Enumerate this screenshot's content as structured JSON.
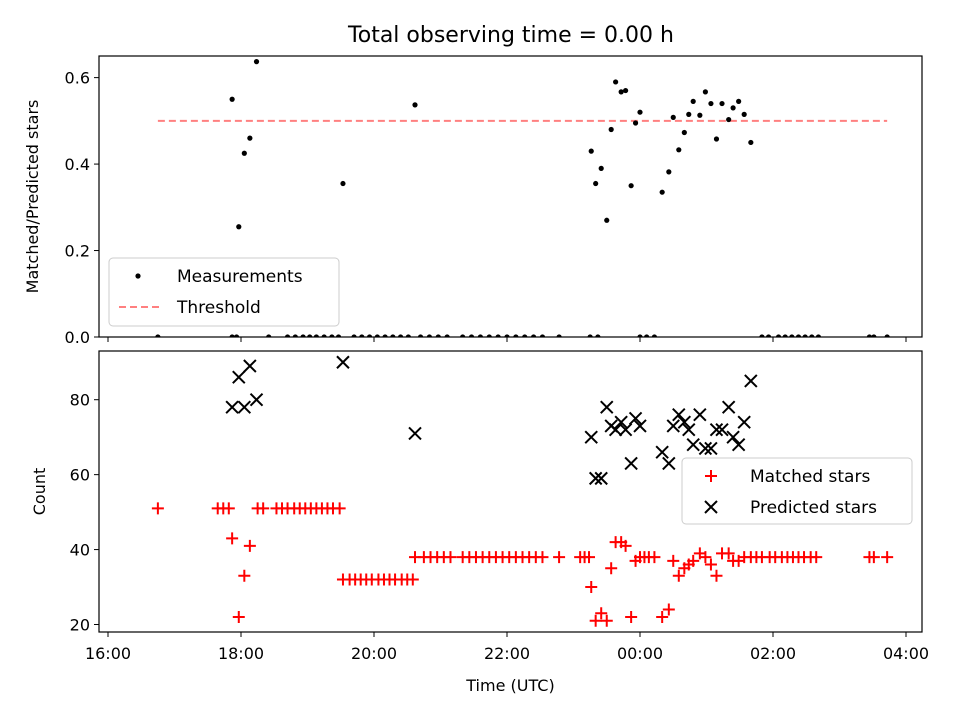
{
  "figure": {
    "title": "Total observing time = 0.00 h"
  },
  "chart_data": [
    {
      "type": "scatter",
      "ylabel": "Matched/Predicted stars",
      "xlabel": "",
      "xlim": [
        "16:00",
        "04:00"
      ],
      "ylim": [
        0,
        0.65
      ],
      "yticks": [
        0.0,
        0.2,
        0.4,
        0.6
      ],
      "ytick_labels": [
        "0.0",
        "0.2",
        "0.4",
        "0.6"
      ],
      "grid": false,
      "legend_position": "lower-left",
      "threshold": {
        "name": "Threshold",
        "value": 0.5,
        "x_start": "16:45",
        "x_end": "03:43",
        "color": "#ff8080",
        "style": "dashed"
      },
      "series": [
        {
          "name": "Measurements",
          "marker": "dot",
          "color": "#000000",
          "points": [
            {
              "x": "16:45",
              "y": 0.0
            },
            {
              "x": "17:52",
              "y": 0.0
            },
            {
              "x": "17:56",
              "y": 0.0
            },
            {
              "x": "17:52",
              "y": 0.55
            },
            {
              "x": "17:58",
              "y": 0.255
            },
            {
              "x": "18:03",
              "y": 0.425
            },
            {
              "x": "18:08",
              "y": 0.46
            },
            {
              "x": "18:14",
              "y": 0.637
            },
            {
              "x": "18:25",
              "y": 0.0
            },
            {
              "x": "18:42",
              "y": 0.0
            },
            {
              "x": "18:49",
              "y": 0.0
            },
            {
              "x": "18:56",
              "y": 0.0
            },
            {
              "x": "19:02",
              "y": 0.0
            },
            {
              "x": "19:08",
              "y": 0.0
            },
            {
              "x": "19:15",
              "y": 0.0
            },
            {
              "x": "19:22",
              "y": 0.0
            },
            {
              "x": "19:28",
              "y": 0.0
            },
            {
              "x": "19:32",
              "y": 0.355
            },
            {
              "x": "19:42",
              "y": 0.0
            },
            {
              "x": "19:49",
              "y": 0.0
            },
            {
              "x": "19:56",
              "y": 0.0
            },
            {
              "x": "20:03",
              "y": 0.0
            },
            {
              "x": "20:10",
              "y": 0.0
            },
            {
              "x": "20:17",
              "y": 0.0
            },
            {
              "x": "20:24",
              "y": 0.0
            },
            {
              "x": "20:31",
              "y": 0.0
            },
            {
              "x": "20:37",
              "y": 0.537
            },
            {
              "x": "20:42",
              "y": 0.0
            },
            {
              "x": "20:50",
              "y": 0.0
            },
            {
              "x": "20:58",
              "y": 0.0
            },
            {
              "x": "21:06",
              "y": 0.0
            },
            {
              "x": "21:20",
              "y": 0.0
            },
            {
              "x": "21:28",
              "y": 0.0
            },
            {
              "x": "21:36",
              "y": 0.0
            },
            {
              "x": "21:44",
              "y": 0.0
            },
            {
              "x": "21:52",
              "y": 0.0
            },
            {
              "x": "22:00",
              "y": 0.0
            },
            {
              "x": "22:08",
              "y": 0.0
            },
            {
              "x": "22:16",
              "y": 0.0
            },
            {
              "x": "22:24",
              "y": 0.0
            },
            {
              "x": "22:32",
              "y": 0.0
            },
            {
              "x": "22:47",
              "y": 0.0
            },
            {
              "x": "23:15",
              "y": 0.0
            },
            {
              "x": "23:22",
              "y": 0.0
            },
            {
              "x": "23:16",
              "y": 0.43
            },
            {
              "x": "23:20",
              "y": 0.355
            },
            {
              "x": "23:25",
              "y": 0.39
            },
            {
              "x": "23:30",
              "y": 0.27
            },
            {
              "x": "23:34",
              "y": 0.48
            },
            {
              "x": "23:38",
              "y": 0.59
            },
            {
              "x": "23:43",
              "y": 0.567
            },
            {
              "x": "23:47",
              "y": 0.57
            },
            {
              "x": "23:52",
              "y": 0.35
            },
            {
              "x": "23:56",
              "y": 0.495
            },
            {
              "x": "00:00",
              "y": 0.52
            },
            {
              "x": "00:00",
              "y": 0.0
            },
            {
              "x": "00:06",
              "y": 0.0
            },
            {
              "x": "00:13",
              "y": 0.0
            },
            {
              "x": "00:20",
              "y": 0.335
            },
            {
              "x": "00:26",
              "y": 0.382
            },
            {
              "x": "00:30",
              "y": 0.508
            },
            {
              "x": "00:35",
              "y": 0.433
            },
            {
              "x": "00:40",
              "y": 0.473
            },
            {
              "x": "00:44",
              "y": 0.515
            },
            {
              "x": "00:48",
              "y": 0.545
            },
            {
              "x": "00:54",
              "y": 0.513
            },
            {
              "x": "00:59",
              "y": 0.567
            },
            {
              "x": "01:04",
              "y": 0.54
            },
            {
              "x": "01:09",
              "y": 0.458
            },
            {
              "x": "01:14",
              "y": 0.54
            },
            {
              "x": "01:20",
              "y": 0.503
            },
            {
              "x": "01:24",
              "y": 0.53
            },
            {
              "x": "01:29",
              "y": 0.545
            },
            {
              "x": "01:34",
              "y": 0.515
            },
            {
              "x": "01:40",
              "y": 0.45
            },
            {
              "x": "01:50",
              "y": 0.0
            },
            {
              "x": "01:56",
              "y": 0.0
            },
            {
              "x": "02:05",
              "y": 0.0
            },
            {
              "x": "02:11",
              "y": 0.0
            },
            {
              "x": "02:17",
              "y": 0.0
            },
            {
              "x": "02:23",
              "y": 0.0
            },
            {
              "x": "02:29",
              "y": 0.0
            },
            {
              "x": "02:35",
              "y": 0.0
            },
            {
              "x": "02:41",
              "y": 0.0
            },
            {
              "x": "03:27",
              "y": 0.0
            },
            {
              "x": "03:31",
              "y": 0.0
            },
            {
              "x": "03:43",
              "y": 0.0
            }
          ]
        }
      ]
    },
    {
      "type": "scatter",
      "ylabel": "Count",
      "xlabel": "Time (UTC)",
      "xlim": [
        "16:00",
        "04:00"
      ],
      "ylim": [
        18,
        93
      ],
      "xticks": [
        "16:00",
        "18:00",
        "20:00",
        "22:00",
        "00:00",
        "02:00",
        "04:00"
      ],
      "yticks": [
        20,
        40,
        60,
        80
      ],
      "ytick_labels": [
        "20",
        "40",
        "60",
        "80"
      ],
      "grid": false,
      "legend_position": "center-right",
      "series": [
        {
          "name": "Matched stars",
          "marker": "plus",
          "color": "#ff0000",
          "points": [
            {
              "x": "16:45",
              "y": 51
            },
            {
              "x": "17:39",
              "y": 51
            },
            {
              "x": "17:44",
              "y": 51
            },
            {
              "x": "17:49",
              "y": 51
            },
            {
              "x": "17:52",
              "y": 43
            },
            {
              "x": "17:58",
              "y": 22
            },
            {
              "x": "18:03",
              "y": 33
            },
            {
              "x": "18:08",
              "y": 41
            },
            {
              "x": "18:15",
              "y": 51
            },
            {
              "x": "18:20",
              "y": 51
            },
            {
              "x": "18:32",
              "y": 51
            },
            {
              "x": "18:37",
              "y": 51
            },
            {
              "x": "18:42",
              "y": 51
            },
            {
              "x": "18:48",
              "y": 51
            },
            {
              "x": "18:53",
              "y": 51
            },
            {
              "x": "18:58",
              "y": 51
            },
            {
              "x": "19:03",
              "y": 51
            },
            {
              "x": "19:08",
              "y": 51
            },
            {
              "x": "19:13",
              "y": 51
            },
            {
              "x": "19:18",
              "y": 51
            },
            {
              "x": "19:23",
              "y": 51
            },
            {
              "x": "19:29",
              "y": 51
            },
            {
              "x": "19:32",
              "y": 32
            },
            {
              "x": "19:38",
              "y": 32
            },
            {
              "x": "19:43",
              "y": 32
            },
            {
              "x": "19:48",
              "y": 32
            },
            {
              "x": "19:53",
              "y": 32
            },
            {
              "x": "19:58",
              "y": 32
            },
            {
              "x": "20:04",
              "y": 32
            },
            {
              "x": "20:09",
              "y": 32
            },
            {
              "x": "20:14",
              "y": 32
            },
            {
              "x": "20:19",
              "y": 32
            },
            {
              "x": "20:25",
              "y": 32
            },
            {
              "x": "20:30",
              "y": 32
            },
            {
              "x": "20:35",
              "y": 32
            },
            {
              "x": "20:37",
              "y": 38
            },
            {
              "x": "20:45",
              "y": 38
            },
            {
              "x": "20:51",
              "y": 38
            },
            {
              "x": "20:57",
              "y": 38
            },
            {
              "x": "21:03",
              "y": 38
            },
            {
              "x": "21:09",
              "y": 38
            },
            {
              "x": "21:20",
              "y": 38
            },
            {
              "x": "21:26",
              "y": 38
            },
            {
              "x": "21:32",
              "y": 38
            },
            {
              "x": "21:38",
              "y": 38
            },
            {
              "x": "21:44",
              "y": 38
            },
            {
              "x": "21:50",
              "y": 38
            },
            {
              "x": "21:56",
              "y": 38
            },
            {
              "x": "22:02",
              "y": 38
            },
            {
              "x": "22:08",
              "y": 38
            },
            {
              "x": "22:14",
              "y": 38
            },
            {
              "x": "22:20",
              "y": 38
            },
            {
              "x": "22:26",
              "y": 38
            },
            {
              "x": "22:32",
              "y": 38
            },
            {
              "x": "22:47",
              "y": 38
            },
            {
              "x": "23:06",
              "y": 38
            },
            {
              "x": "23:10",
              "y": 38
            },
            {
              "x": "23:14",
              "y": 38
            },
            {
              "x": "23:16",
              "y": 30
            },
            {
              "x": "23:20",
              "y": 21
            },
            {
              "x": "23:25",
              "y": 23
            },
            {
              "x": "23:30",
              "y": 21
            },
            {
              "x": "23:34",
              "y": 35
            },
            {
              "x": "23:38",
              "y": 42
            },
            {
              "x": "23:43",
              "y": 42
            },
            {
              "x": "23:47",
              "y": 41
            },
            {
              "x": "23:52",
              "y": 22
            },
            {
              "x": "23:56",
              "y": 37
            },
            {
              "x": "00:00",
              "y": 38
            },
            {
              "x": "00:04",
              "y": 38
            },
            {
              "x": "00:08",
              "y": 38
            },
            {
              "x": "00:13",
              "y": 38
            },
            {
              "x": "00:20",
              "y": 22
            },
            {
              "x": "00:26",
              "y": 24
            },
            {
              "x": "00:30",
              "y": 37
            },
            {
              "x": "00:35",
              "y": 33
            },
            {
              "x": "00:40",
              "y": 35
            },
            {
              "x": "00:44",
              "y": 36
            },
            {
              "x": "00:48",
              "y": 37
            },
            {
              "x": "00:54",
              "y": 39
            },
            {
              "x": "00:59",
              "y": 38
            },
            {
              "x": "01:04",
              "y": 36
            },
            {
              "x": "01:09",
              "y": 33
            },
            {
              "x": "01:14",
              "y": 39
            },
            {
              "x": "01:20",
              "y": 39
            },
            {
              "x": "01:24",
              "y": 37
            },
            {
              "x": "01:29",
              "y": 37
            },
            {
              "x": "01:34",
              "y": 38
            },
            {
              "x": "01:40",
              "y": 38
            },
            {
              "x": "01:45",
              "y": 38
            },
            {
              "x": "01:50",
              "y": 38
            },
            {
              "x": "01:57",
              "y": 38
            },
            {
              "x": "02:02",
              "y": 38
            },
            {
              "x": "02:08",
              "y": 38
            },
            {
              "x": "02:13",
              "y": 38
            },
            {
              "x": "02:18",
              "y": 38
            },
            {
              "x": "02:23",
              "y": 38
            },
            {
              "x": "02:28",
              "y": 38
            },
            {
              "x": "02:34",
              "y": 38
            },
            {
              "x": "02:39",
              "y": 38
            },
            {
              "x": "03:27",
              "y": 38
            },
            {
              "x": "03:31",
              "y": 38
            },
            {
              "x": "03:43",
              "y": 38
            }
          ]
        },
        {
          "name": "Predicted stars",
          "marker": "x",
          "color": "#000000",
          "points": [
            {
              "x": "17:52",
              "y": 78
            },
            {
              "x": "17:58",
              "y": 86
            },
            {
              "x": "18:03",
              "y": 78
            },
            {
              "x": "18:08",
              "y": 89
            },
            {
              "x": "18:14",
              "y": 80
            },
            {
              "x": "19:32",
              "y": 90
            },
            {
              "x": "20:37",
              "y": 71
            },
            {
              "x": "23:16",
              "y": 70
            },
            {
              "x": "23:20",
              "y": 59
            },
            {
              "x": "23:25",
              "y": 59
            },
            {
              "x": "23:30",
              "y": 78
            },
            {
              "x": "23:34",
              "y": 73
            },
            {
              "x": "23:38",
              "y": 72
            },
            {
              "x": "23:43",
              "y": 74
            },
            {
              "x": "23:47",
              "y": 72
            },
            {
              "x": "23:52",
              "y": 63
            },
            {
              "x": "23:56",
              "y": 75
            },
            {
              "x": "00:00",
              "y": 73
            },
            {
              "x": "00:20",
              "y": 66
            },
            {
              "x": "00:26",
              "y": 63
            },
            {
              "x": "00:30",
              "y": 73
            },
            {
              "x": "00:35",
              "y": 76
            },
            {
              "x": "00:40",
              "y": 74
            },
            {
              "x": "00:44",
              "y": 72
            },
            {
              "x": "00:48",
              "y": 68
            },
            {
              "x": "00:54",
              "y": 76
            },
            {
              "x": "00:59",
              "y": 67
            },
            {
              "x": "01:04",
              "y": 67
            },
            {
              "x": "01:09",
              "y": 72
            },
            {
              "x": "01:14",
              "y": 72
            },
            {
              "x": "01:20",
              "y": 78
            },
            {
              "x": "01:24",
              "y": 70
            },
            {
              "x": "01:29",
              "y": 68
            },
            {
              "x": "01:34",
              "y": 74
            },
            {
              "x": "01:40",
              "y": 85
            }
          ]
        }
      ]
    }
  ]
}
